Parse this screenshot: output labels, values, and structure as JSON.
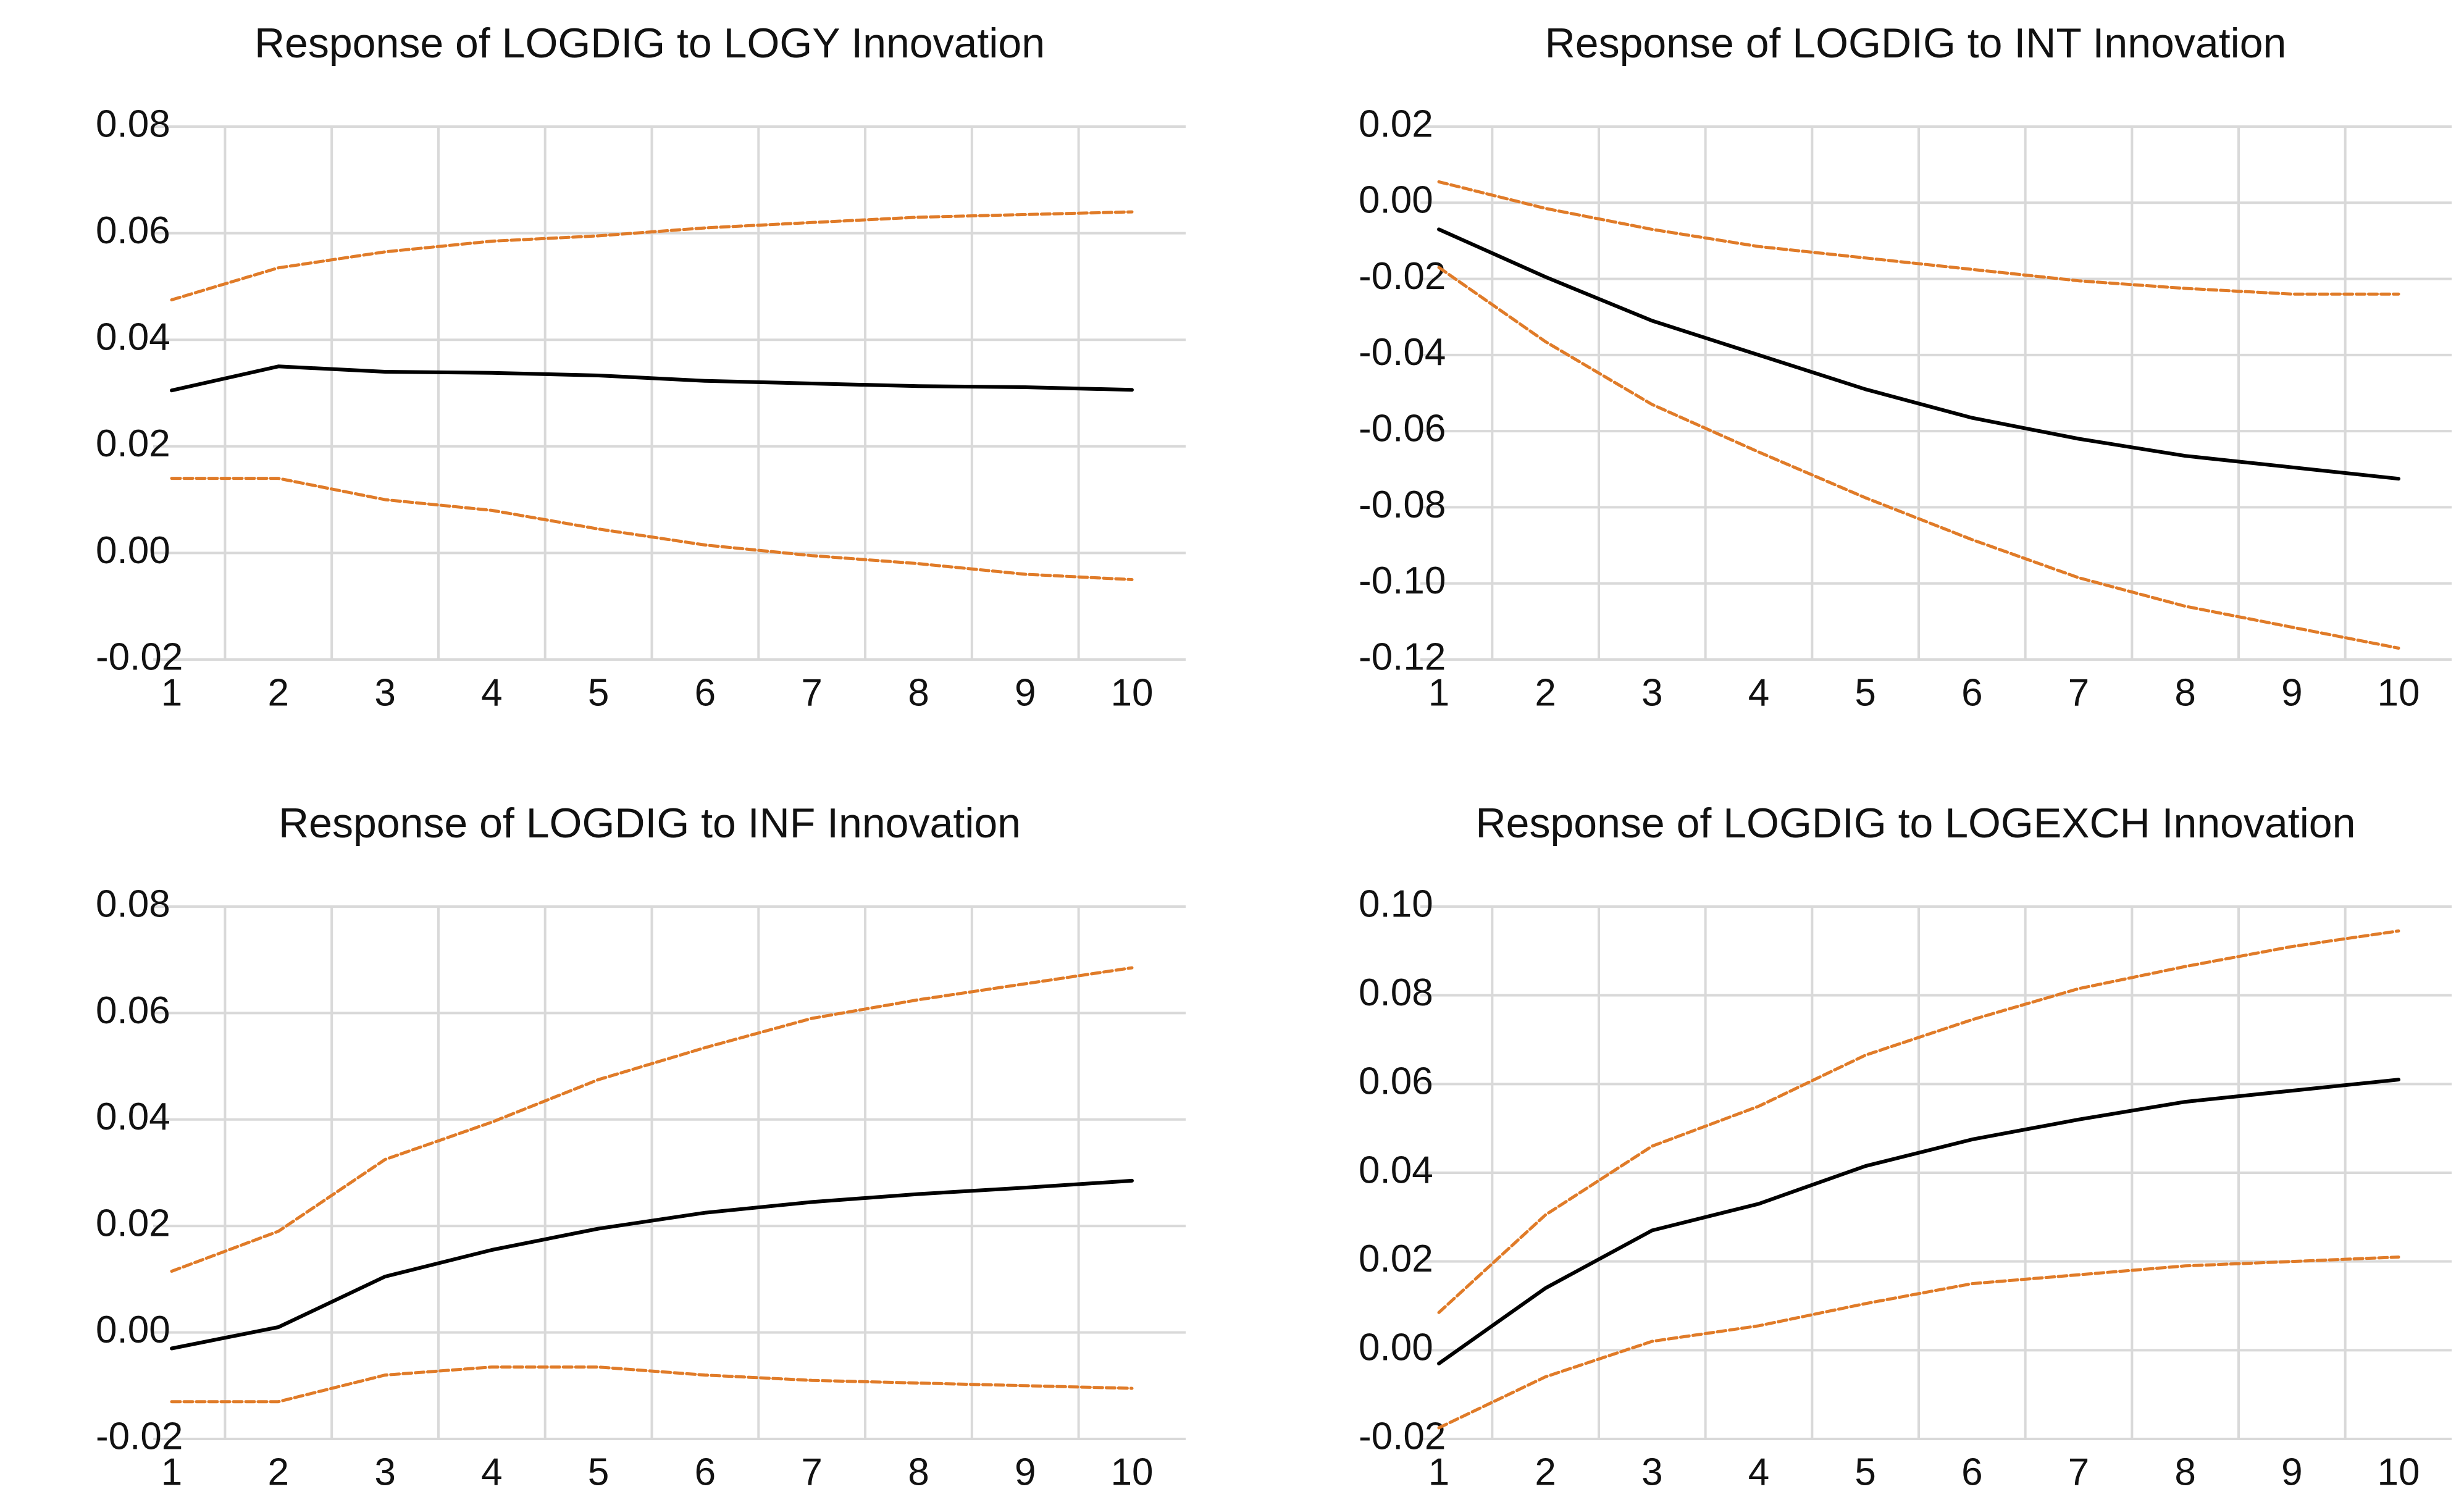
{
  "figure": {
    "layout": "2x2 grid of impulse response panels"
  },
  "chart_data": [
    {
      "type": "line",
      "title": "Response of LOGDIG to LOGY Innovation",
      "xlabel": "",
      "ylabel": "",
      "x": [
        1,
        2,
        3,
        4,
        5,
        6,
        7,
        8,
        9,
        10
      ],
      "xlim": [
        1,
        10
      ],
      "ylim": [
        -0.02,
        0.08
      ],
      "yticks": [
        "-0.02",
        "0.00",
        "0.02",
        "0.04",
        "0.06",
        "0.08"
      ],
      "grid": true,
      "legend": "none",
      "series": [
        {
          "name": "response",
          "style": "solid",
          "color": "#000000",
          "values": [
            0.0305,
            0.035,
            0.034,
            0.0338,
            0.0333,
            0.0323,
            0.0318,
            0.0313,
            0.0311,
            0.0306
          ]
        },
        {
          "name": "upper band",
          "style": "dashed",
          "color": "#E07B28",
          "values": [
            0.0475,
            0.0535,
            0.0565,
            0.0585,
            0.0595,
            0.061,
            0.062,
            0.063,
            0.0635,
            0.064
          ]
        },
        {
          "name": "lower band",
          "style": "dashed",
          "color": "#E07B28",
          "values": [
            0.014,
            0.014,
            0.01,
            0.008,
            0.0045,
            0.0015,
            -0.0005,
            -0.002,
            -0.004,
            -0.005
          ]
        }
      ]
    },
    {
      "type": "line",
      "title": "Response of LOGDIG to INT Innovation",
      "xlabel": "",
      "ylabel": "",
      "x": [
        1,
        2,
        3,
        4,
        5,
        6,
        7,
        8,
        9,
        10
      ],
      "xlim": [
        1,
        10
      ],
      "ylim": [
        -0.12,
        0.02
      ],
      "yticks": [
        "-0.12",
        "-0.10",
        "-0.08",
        "-0.06",
        "-0.04",
        "-0.02",
        "0.00",
        "0.02"
      ],
      "grid": true,
      "legend": "none",
      "series": [
        {
          "name": "response",
          "style": "solid",
          "color": "#000000",
          "values": [
            -0.007,
            -0.0195,
            -0.031,
            -0.04,
            -0.049,
            -0.0565,
            -0.062,
            -0.0665,
            -0.0695,
            -0.0725
          ]
        },
        {
          "name": "upper band",
          "style": "dashed",
          "color": "#E07B28",
          "values": [
            0.0055,
            -0.0015,
            -0.007,
            -0.0115,
            -0.0145,
            -0.0175,
            -0.0205,
            -0.0225,
            -0.024,
            -0.024
          ]
        },
        {
          "name": "lower band",
          "style": "dashed",
          "color": "#E07B28",
          "values": [
            -0.017,
            -0.0365,
            -0.053,
            -0.0655,
            -0.0775,
            -0.0885,
            -0.0985,
            -0.106,
            -0.1115,
            -0.117
          ]
        }
      ]
    },
    {
      "type": "line",
      "title": "Response of LOGDIG to INF Innovation",
      "xlabel": "",
      "ylabel": "",
      "x": [
        1,
        2,
        3,
        4,
        5,
        6,
        7,
        8,
        9,
        10
      ],
      "xlim": [
        1,
        10
      ],
      "ylim": [
        -0.02,
        0.08
      ],
      "yticks": [
        "-0.02",
        "0.00",
        "0.02",
        "0.04",
        "0.06",
        "0.08"
      ],
      "grid": true,
      "legend": "none",
      "series": [
        {
          "name": "response",
          "style": "solid",
          "color": "#000000",
          "values": [
            -0.003,
            0.001,
            0.0105,
            0.0155,
            0.0195,
            0.0225,
            0.0245,
            0.026,
            0.0272,
            0.0285
          ]
        },
        {
          "name": "upper band",
          "style": "dashed",
          "color": "#E07B28",
          "values": [
            0.0115,
            0.019,
            0.0325,
            0.0395,
            0.0475,
            0.0535,
            0.059,
            0.0625,
            0.0655,
            0.0685
          ]
        },
        {
          "name": "lower band",
          "style": "dashed",
          "color": "#E07B28",
          "values": [
            -0.013,
            -0.013,
            -0.008,
            -0.0065,
            -0.0065,
            -0.008,
            -0.009,
            -0.0095,
            -0.01,
            -0.0105
          ]
        }
      ]
    },
    {
      "type": "line",
      "title": "Response of LOGDIG to LOGEXCH Innovation",
      "xlabel": "",
      "ylabel": "",
      "x": [
        1,
        2,
        3,
        4,
        5,
        6,
        7,
        8,
        9,
        10
      ],
      "xlim": [
        1,
        10
      ],
      "ylim": [
        -0.02,
        0.1
      ],
      "yticks": [
        "-0.02",
        "0.00",
        "0.02",
        "0.04",
        "0.06",
        "0.08",
        "0.10"
      ],
      "grid": true,
      "legend": "none",
      "series": [
        {
          "name": "response",
          "style": "solid",
          "color": "#000000",
          "values": [
            -0.003,
            0.014,
            0.027,
            0.033,
            0.0415,
            0.0475,
            0.052,
            0.056,
            0.0585,
            0.061
          ]
        },
        {
          "name": "upper band",
          "style": "dashed",
          "color": "#E07B28",
          "values": [
            0.0085,
            0.0305,
            0.046,
            0.055,
            0.0665,
            0.0745,
            0.0815,
            0.0865,
            0.091,
            0.0945
          ]
        },
        {
          "name": "lower band",
          "style": "dashed",
          "color": "#E07B28",
          "values": [
            -0.0175,
            -0.006,
            0.002,
            0.0055,
            0.0105,
            0.015,
            0.017,
            0.019,
            0.02,
            0.021
          ]
        }
      ]
    }
  ]
}
